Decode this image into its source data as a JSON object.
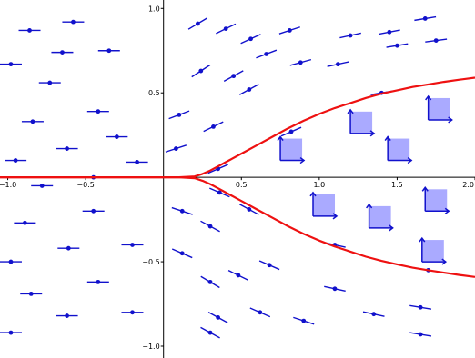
{
  "chart_data": {
    "type": "scatter",
    "title": "",
    "xlabel": "",
    "ylabel": "",
    "xlim": [
      -1.05,
      2.0
    ],
    "ylim": [
      -1.07,
      1.05
    ],
    "grid": false,
    "x_ticks": [
      {
        "value": -1.0,
        "label": "−1.0"
      },
      {
        "value": -0.5,
        "label": "−0.5"
      },
      {
        "value": 0.5,
        "label": "0.5"
      },
      {
        "value": 1.0,
        "label": "1.0"
      },
      {
        "value": 1.5,
        "label": "1.5"
      },
      {
        "value": 2.0,
        "label": "2.0"
      }
    ],
    "y_ticks": [
      {
        "value": 1.0,
        "label": "1.0"
      },
      {
        "value": 0.5,
        "label": "0.5"
      },
      {
        "value": -0.5,
        "label": "−0.5"
      },
      {
        "value": -1.0,
        "label": "−1.0"
      }
    ],
    "colors": {
      "curve": "#ee1111",
      "vector": "#1111cc",
      "frame_fill": "#aaaaff",
      "frame_arrow": "#1111cc",
      "axis": "#000000"
    },
    "curves": [
      {
        "x": [
          -1.05,
          0.0,
          0.1,
          0.2,
          0.25,
          0.3,
          0.35,
          0.4,
          0.5,
          0.6,
          0.7,
          0.8,
          0.9,
          1.0,
          1.1,
          1.2,
          1.3,
          1.4,
          1.5,
          1.6,
          1.7,
          1.8,
          1.9,
          2.0
        ],
        "y": [
          0.0,
          0.0,
          0.0,
          0.005,
          0.02,
          0.04,
          0.065,
          0.09,
          0.14,
          0.19,
          0.24,
          0.29,
          0.335,
          0.375,
          0.41,
          0.44,
          0.47,
          0.495,
          0.515,
          0.535,
          0.55,
          0.565,
          0.578,
          0.59
        ]
      },
      {
        "x": [
          -1.05,
          0.0,
          0.1,
          0.2,
          0.25,
          0.3,
          0.35,
          0.4,
          0.5,
          0.6,
          0.7,
          0.8,
          0.9,
          1.0,
          1.1,
          1.2,
          1.3,
          1.4,
          1.5,
          1.6,
          1.7,
          1.8,
          1.9,
          2.0
        ],
        "y": [
          0.0,
          0.0,
          0.0,
          -0.005,
          -0.02,
          -0.04,
          -0.065,
          -0.09,
          -0.14,
          -0.19,
          -0.24,
          -0.29,
          -0.335,
          -0.375,
          -0.41,
          -0.44,
          -0.47,
          -0.495,
          -0.515,
          -0.535,
          -0.55,
          -0.565,
          -0.578,
          -0.59
        ]
      }
    ],
    "vectors": [
      {
        "x": -0.58,
        "y": 0.92,
        "slope": 0.0
      },
      {
        "x": -0.86,
        "y": 0.87,
        "slope": 0.0
      },
      {
        "x": -0.65,
        "y": 0.74,
        "slope": 0.0
      },
      {
        "x": -0.35,
        "y": 0.75,
        "slope": 0.0
      },
      {
        "x": -0.98,
        "y": 0.67,
        "slope": 0.0
      },
      {
        "x": -0.73,
        "y": 0.56,
        "slope": 0.0
      },
      {
        "x": -0.42,
        "y": 0.39,
        "slope": 0.0
      },
      {
        "x": -0.84,
        "y": 0.33,
        "slope": 0.0
      },
      {
        "x": -0.3,
        "y": 0.24,
        "slope": 0.0
      },
      {
        "x": -0.62,
        "y": 0.17,
        "slope": 0.0
      },
      {
        "x": -0.95,
        "y": 0.1,
        "slope": 0.0
      },
      {
        "x": -0.17,
        "y": 0.09,
        "slope": 0.0
      },
      {
        "x": -0.78,
        "y": -0.05,
        "slope": 0.0
      },
      {
        "x": -0.45,
        "y": 0.0,
        "slope": 0.0
      },
      {
        "x": -0.45,
        "y": -0.2,
        "slope": 0.0
      },
      {
        "x": -0.89,
        "y": -0.27,
        "slope": 0.0
      },
      {
        "x": -0.61,
        "y": -0.42,
        "slope": 0.0
      },
      {
        "x": -0.2,
        "y": -0.4,
        "slope": 0.0
      },
      {
        "x": -0.98,
        "y": -0.5,
        "slope": 0.0
      },
      {
        "x": -0.42,
        "y": -0.62,
        "slope": 0.0
      },
      {
        "x": -0.85,
        "y": -0.69,
        "slope": 0.0
      },
      {
        "x": -0.62,
        "y": -0.82,
        "slope": 0.0
      },
      {
        "x": -0.2,
        "y": -0.8,
        "slope": 0.0
      },
      {
        "x": -0.98,
        "y": -0.92,
        "slope": 0.0
      },
      {
        "x": 0.22,
        "y": 0.91,
        "slope": 0.55
      },
      {
        "x": 0.4,
        "y": 0.88,
        "slope": 0.45
      },
      {
        "x": 0.56,
        "y": 0.82,
        "slope": 0.42
      },
      {
        "x": 0.81,
        "y": 0.87,
        "slope": 0.3
      },
      {
        "x": 1.2,
        "y": 0.84,
        "slope": 0.2
      },
      {
        "x": 1.45,
        "y": 0.86,
        "slope": 0.18
      },
      {
        "x": 1.68,
        "y": 0.94,
        "slope": 0.15
      },
      {
        "x": 0.24,
        "y": 0.63,
        "slope": 0.6
      },
      {
        "x": 0.45,
        "y": 0.6,
        "slope": 0.5
      },
      {
        "x": 0.66,
        "y": 0.73,
        "slope": 0.35
      },
      {
        "x": 0.88,
        "y": 0.68,
        "slope": 0.25
      },
      {
        "x": 1.12,
        "y": 0.67,
        "slope": 0.2
      },
      {
        "x": 1.5,
        "y": 0.78,
        "slope": 0.15
      },
      {
        "x": 1.75,
        "y": 0.81,
        "slope": 0.12
      },
      {
        "x": 0.55,
        "y": 0.52,
        "slope": 0.5
      },
      {
        "x": 0.1,
        "y": 0.37,
        "slope": 0.35
      },
      {
        "x": 0.32,
        "y": 0.3,
        "slope": 0.45
      },
      {
        "x": 0.08,
        "y": 0.17,
        "slope": 0.3
      },
      {
        "x": 0.12,
        "y": -0.2,
        "slope": -0.3
      },
      {
        "x": 0.3,
        "y": -0.29,
        "slope": -0.5
      },
      {
        "x": 0.12,
        "y": -0.45,
        "slope": -0.4
      },
      {
        "x": 0.3,
        "y": -0.62,
        "slope": -0.55
      },
      {
        "x": 0.48,
        "y": -0.58,
        "slope": -0.45
      },
      {
        "x": 0.68,
        "y": -0.52,
        "slope": -0.4
      },
      {
        "x": 1.1,
        "y": -0.66,
        "slope": -0.2
      },
      {
        "x": 0.35,
        "y": -0.83,
        "slope": -0.5
      },
      {
        "x": 0.62,
        "y": -0.8,
        "slope": -0.4
      },
      {
        "x": 0.9,
        "y": -0.85,
        "slope": -0.3
      },
      {
        "x": 1.35,
        "y": -0.81,
        "slope": -0.2
      },
      {
        "x": 1.65,
        "y": -0.77,
        "slope": -0.15
      },
      {
        "x": 0.3,
        "y": -0.92,
        "slope": -0.5
      },
      {
        "x": 1.65,
        "y": -0.93,
        "slope": -0.15
      },
      {
        "x": 0.36,
        "y": -0.09,
        "slope": -0.4
      },
      {
        "x": 0.55,
        "y": -0.19,
        "slope": -0.5
      },
      {
        "x": 0.82,
        "y": 0.27,
        "slope": 0.4
      },
      {
        "x": 1.1,
        "y": -0.4,
        "slope": -0.2
      },
      {
        "x": 1.4,
        "y": 0.5,
        "slope": 0.15
      },
      {
        "x": 1.7,
        "y": -0.55,
        "slope": -0.15
      },
      {
        "x": 0.35,
        "y": 0.05,
        "slope": 0.4
      }
    ],
    "frames": [
      {
        "x": 0.75,
        "y": 0.1
      },
      {
        "x": 1.2,
        "y": 0.26
      },
      {
        "x": 1.44,
        "y": 0.1
      },
      {
        "x": 1.7,
        "y": 0.34
      },
      {
        "x": 0.96,
        "y": -0.23
      },
      {
        "x": 1.32,
        "y": -0.3
      },
      {
        "x": 1.68,
        "y": -0.2
      },
      {
        "x": 1.66,
        "y": -0.5
      }
    ]
  }
}
